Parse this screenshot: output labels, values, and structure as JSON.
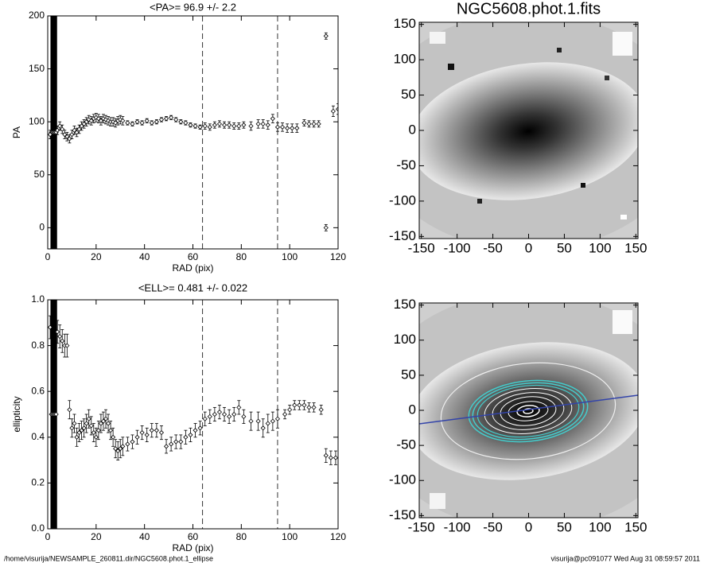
{
  "chart_data": [
    {
      "type": "scatter",
      "title": "<PA>=  96.9 +/-   2.2",
      "xlabel": "RAD (pix)",
      "ylabel": "PA",
      "xlim": [
        0,
        120
      ],
      "ylim": [
        -20,
        200
      ],
      "xticks": [
        0,
        20,
        40,
        60,
        80,
        100,
        120
      ],
      "yticks": [
        0,
        50,
        100,
        150,
        200
      ],
      "vlines": [
        64,
        95
      ],
      "color": "#000000",
      "x": [
        1.5,
        2,
        2.5,
        3,
        3.5,
        1,
        4,
        5,
        6,
        7,
        8,
        9,
        10,
        11,
        12,
        13,
        14,
        15,
        16,
        17,
        18,
        19,
        20,
        21,
        22,
        23,
        24,
        25,
        26,
        27,
        28,
        29,
        30,
        31,
        33,
        35,
        37,
        39,
        41,
        43,
        45,
        47,
        49,
        51,
        53,
        55,
        57,
        59,
        61,
        63,
        65,
        67,
        69,
        71,
        73,
        75,
        77,
        79,
        81,
        84,
        87,
        89,
        91,
        93,
        95,
        97,
        99,
        101,
        103,
        106,
        108,
        110,
        112,
        115,
        115,
        118,
        120
      ],
      "values": [
        90,
        90,
        90,
        90,
        90,
        88,
        92,
        96,
        93,
        88,
        86,
        84,
        88,
        92,
        90,
        93,
        96,
        98,
        100,
        102,
        101,
        103,
        104,
        103,
        101,
        103,
        102,
        101,
        100,
        100,
        99,
        101,
        102,
        101,
        99,
        98,
        100,
        99,
        101,
        99,
        100,
        102,
        103,
        104,
        102,
        100,
        99,
        97,
        96,
        95,
        96,
        95,
        97,
        98,
        97,
        97,
        96,
        96,
        97,
        96,
        98,
        98,
        97,
        103,
        95,
        95,
        94,
        94,
        94,
        99,
        98,
        98,
        98,
        181,
        0,
        110,
        112
      ],
      "errors": [
        115,
        115,
        115,
        115,
        115,
        4,
        4,
        4,
        4,
        4,
        4,
        4,
        4,
        4,
        4,
        4,
        4,
        4,
        4,
        4,
        4,
        4,
        4,
        4,
        4,
        4,
        4,
        4,
        4,
        4,
        4,
        4,
        4,
        4,
        2,
        2,
        2,
        2,
        2,
        2,
        2,
        2,
        2,
        2,
        2,
        2,
        2,
        2,
        2,
        2,
        3,
        3,
        3,
        3,
        3,
        3,
        3,
        3,
        3,
        4,
        4,
        4,
        4,
        4,
        4,
        4,
        4,
        4,
        4,
        3,
        3,
        3,
        3,
        3,
        3,
        5,
        5
      ]
    },
    {
      "type": "scatter",
      "title": "<ELL>= 0.481 +/-  0.022",
      "xlabel": "RAD (pix)",
      "ylabel": "ellipticity",
      "xlim": [
        0,
        120
      ],
      "ylim": [
        0,
        1
      ],
      "xticks": [
        0,
        20,
        40,
        60,
        80,
        100,
        120
      ],
      "yticks": [
        {
          "value": 0,
          "label": "0.0"
        },
        {
          "value": 0.2,
          "label": "0.2"
        },
        {
          "value": 0.4,
          "label": "0.4"
        },
        {
          "value": 0.6,
          "label": "0.6"
        },
        {
          "value": 0.8,
          "label": "0.8"
        },
        {
          "value": 1,
          "label": "1.0"
        }
      ],
      "vlines": [
        64,
        95
      ],
      "color": "#000000",
      "x": [
        1.5,
        2,
        2.5,
        3,
        3.5,
        1,
        4,
        5,
        6,
        7,
        8,
        9,
        10,
        11,
        12,
        13,
        14,
        15,
        16,
        17,
        18,
        19,
        20,
        21,
        22,
        23,
        24,
        25,
        26,
        27,
        28,
        29,
        30,
        31,
        33,
        35,
        37,
        39,
        41,
        43,
        45,
        47,
        49,
        51,
        53,
        55,
        57,
        59,
        61,
        63,
        65,
        67,
        69,
        71,
        73,
        75,
        77,
        79,
        81,
        84,
        87,
        89,
        91,
        93,
        95,
        98,
        100,
        102,
        104,
        106,
        108,
        110,
        113,
        115,
        117,
        119
      ],
      "values": [
        0.5,
        0.5,
        0.5,
        0.5,
        0.5,
        0.88,
        0.86,
        0.84,
        0.82,
        0.8,
        0.8,
        0.52,
        0.44,
        0.46,
        0.4,
        0.42,
        0.43,
        0.44,
        0.46,
        0.48,
        0.45,
        0.42,
        0.4,
        0.43,
        0.46,
        0.47,
        0.48,
        0.46,
        0.43,
        0.4,
        0.35,
        0.34,
        0.35,
        0.36,
        0.37,
        0.38,
        0.4,
        0.42,
        0.41,
        0.43,
        0.43,
        0.42,
        0.36,
        0.37,
        0.38,
        0.38,
        0.4,
        0.41,
        0.43,
        0.44,
        0.48,
        0.49,
        0.5,
        0.51,
        0.5,
        0.49,
        0.5,
        0.53,
        0.49,
        0.47,
        0.47,
        0.44,
        0.46,
        0.47,
        0.48,
        0.5,
        0.52,
        0.54,
        0.54,
        0.54,
        0.53,
        0.53,
        0.52,
        0.32,
        0.31,
        0.31
      ],
      "errors": [
        0.55,
        0.55,
        0.55,
        0.55,
        0.55,
        0.05,
        0.05,
        0.05,
        0.05,
        0.05,
        0.05,
        0.04,
        0.04,
        0.04,
        0.04,
        0.04,
        0.04,
        0.04,
        0.04,
        0.04,
        0.04,
        0.04,
        0.04,
        0.04,
        0.04,
        0.04,
        0.04,
        0.04,
        0.04,
        0.04,
        0.04,
        0.04,
        0.04,
        0.04,
        0.03,
        0.03,
        0.03,
        0.03,
        0.03,
        0.03,
        0.03,
        0.03,
        0.03,
        0.03,
        0.03,
        0.03,
        0.03,
        0.03,
        0.03,
        0.03,
        0.03,
        0.03,
        0.03,
        0.03,
        0.03,
        0.03,
        0.03,
        0.03,
        0.03,
        0.04,
        0.04,
        0.04,
        0.04,
        0.04,
        0.04,
        0.02,
        0.02,
        0.02,
        0.02,
        0.02,
        0.02,
        0.02,
        0.02,
        0.03,
        0.03,
        0.03
      ]
    },
    {
      "type": "image",
      "title": "NGC5608.phot.1.fits",
      "xlim": [
        -153,
        153
      ],
      "ylim": [
        -153,
        153
      ],
      "xticks": [
        -150,
        -100,
        -50,
        0,
        50,
        100,
        150
      ],
      "yticks": [
        -150,
        -100,
        -50,
        0,
        50,
        100,
        150
      ]
    },
    {
      "type": "image",
      "xlim": [
        -153,
        153
      ],
      "ylim": [
        -153,
        153
      ],
      "xticks": [
        -150,
        -100,
        -50,
        0,
        50,
        100,
        150
      ],
      "yticks": [
        -150,
        -100,
        -50,
        0,
        50,
        100,
        150
      ]
    }
  ],
  "footer": {
    "left": "/home/visurija/NEWSAMPLE_260811.dir/NGC5608.phot.1_ellipse",
    "right": "visurija@pc091077  Wed Aug 31 08:59:57 2011"
  }
}
